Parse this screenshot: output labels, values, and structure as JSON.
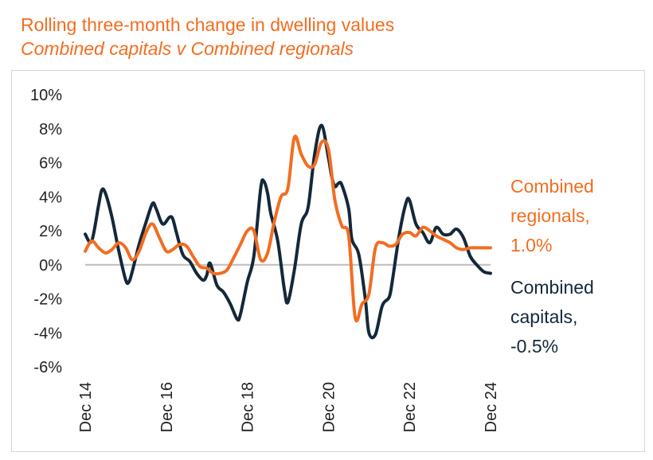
{
  "title": "Rolling three-month change in dwelling values",
  "subtitle": "Combined capitals v Combined regionals",
  "colors": {
    "regionals": "#f26d21",
    "capitals": "#14283a",
    "zero_line": "#bdbdbd"
  },
  "labels": {
    "regionals_line1": "Combined",
    "regionals_line2": "regionals,",
    "regionals_value": "1.0%",
    "capitals_line1": "Combined",
    "capitals_line2": "capitals,",
    "capitals_value": "-0.5%"
  },
  "chart_data": {
    "type": "line",
    "title": "Rolling three-month change in dwelling values",
    "subtitle": "Combined capitals v Combined regionals",
    "xlabel": "",
    "ylabel": "",
    "ylim": [
      -6,
      10
    ],
    "y_ticks": [
      "10%",
      "8%",
      "6%",
      "4%",
      "2%",
      "0%",
      "-2%",
      "-4%",
      "-6%"
    ],
    "x_range": [
      2014.92,
      2024.92
    ],
    "x_ticks": [
      {
        "label": "Dec 14",
        "x": 2014.92
      },
      {
        "label": "Dec 16",
        "x": 2016.92
      },
      {
        "label": "Dec 18",
        "x": 2018.92
      },
      {
        "label": "Dec 20",
        "x": 2020.92
      },
      {
        "label": "Dec 22",
        "x": 2022.92
      },
      {
        "label": "Dec 24",
        "x": 2024.92
      }
    ],
    "legend": "right",
    "series": [
      {
        "name": "Combined capitals",
        "x": [
          2014.92,
          2015.08,
          2015.25,
          2015.33,
          2015.42,
          2015.58,
          2015.75,
          2015.92,
          2016.0,
          2016.08,
          2016.25,
          2016.42,
          2016.58,
          2016.67,
          2016.83,
          2017.0,
          2017.08,
          2017.17,
          2017.33,
          2017.5,
          2017.67,
          2017.83,
          2017.92,
          2018.0,
          2018.17,
          2018.33,
          2018.5,
          2018.67,
          2018.75,
          2018.92,
          2019.08,
          2019.25,
          2019.33,
          2019.42,
          2019.5,
          2019.67,
          2019.83,
          2019.92,
          2020.08,
          2020.25,
          2020.42,
          2020.58,
          2020.75,
          2020.92,
          2021.0,
          2021.08,
          2021.17,
          2021.25,
          2021.42,
          2021.5,
          2021.67,
          2021.83,
          2021.92,
          2022.08,
          2022.25,
          2022.42,
          2022.5,
          2022.67,
          2022.83,
          2022.92,
          2023.08,
          2023.25,
          2023.42,
          2023.58,
          2023.75,
          2023.92,
          2024.08,
          2024.25,
          2024.42,
          2024.58,
          2024.75,
          2024.92
        ],
        "values": [
          1.8,
          1.4,
          3.5,
          4.4,
          4.2,
          2.8,
          0.8,
          -0.9,
          -1.0,
          -0.4,
          1.2,
          2.5,
          3.6,
          3.3,
          2.4,
          2.8,
          2.7,
          1.9,
          0.6,
          0.2,
          -0.5,
          -0.9,
          -0.6,
          0.1,
          -1.2,
          -1.6,
          -2.3,
          -3.2,
          -2.9,
          -1.0,
          0.5,
          4.5,
          4.9,
          4.2,
          3.0,
          1.4,
          -1.4,
          -2.2,
          -0.3,
          2.4,
          3.4,
          6.5,
          8.2,
          6.3,
          5.2,
          4.6,
          4.8,
          4.7,
          3.3,
          1.5,
          0.6,
          -2.0,
          -4.0,
          -4.1,
          -2.4,
          -1.9,
          -0.9,
          1.8,
          3.6,
          3.8,
          2.4,
          1.9,
          1.3,
          2.2,
          1.8,
          1.8,
          2.1,
          1.6,
          0.5,
          0.0,
          -0.4,
          -0.5
        ]
      },
      {
        "name": "Combined regionals",
        "x": [
          2014.92,
          2015.08,
          2015.25,
          2015.42,
          2015.58,
          2015.75,
          2015.92,
          2016.08,
          2016.25,
          2016.42,
          2016.58,
          2016.75,
          2016.92,
          2017.08,
          2017.25,
          2017.42,
          2017.58,
          2017.75,
          2017.92,
          2018.08,
          2018.25,
          2018.42,
          2018.58,
          2018.75,
          2018.92,
          2019.08,
          2019.25,
          2019.42,
          2019.58,
          2019.75,
          2019.92,
          2020.08,
          2020.25,
          2020.42,
          2020.58,
          2020.75,
          2020.92,
          2021.08,
          2021.25,
          2021.42,
          2021.58,
          2021.75,
          2021.92,
          2022.08,
          2022.25,
          2022.42,
          2022.58,
          2022.75,
          2022.92,
          2023.08,
          2023.25,
          2023.42,
          2023.58,
          2023.75,
          2023.92,
          2024.08,
          2024.25,
          2024.42,
          2024.58,
          2024.75,
          2024.92
        ],
        "values": [
          0.8,
          1.4,
          1.0,
          0.7,
          0.9,
          1.3,
          1.0,
          0.3,
          0.8,
          1.9,
          2.4,
          1.6,
          0.8,
          0.9,
          1.2,
          1.1,
          0.5,
          -0.1,
          -0.2,
          -0.5,
          -0.5,
          -0.3,
          0.4,
          1.2,
          2.0,
          2.0,
          0.3,
          0.7,
          2.5,
          4.0,
          4.5,
          7.5,
          6.5,
          5.8,
          5.9,
          7.2,
          6.8,
          3.8,
          2.3,
          1.7,
          -3.1,
          -2.3,
          -1.7,
          1.0,
          1.3,
          1.1,
          1.2,
          1.8,
          1.9,
          1.7,
          2.2,
          2.0,
          1.7,
          1.5,
          1.3,
          1.0,
          0.9,
          1.0,
          1.0,
          1.0,
          1.0
        ]
      }
    ]
  }
}
